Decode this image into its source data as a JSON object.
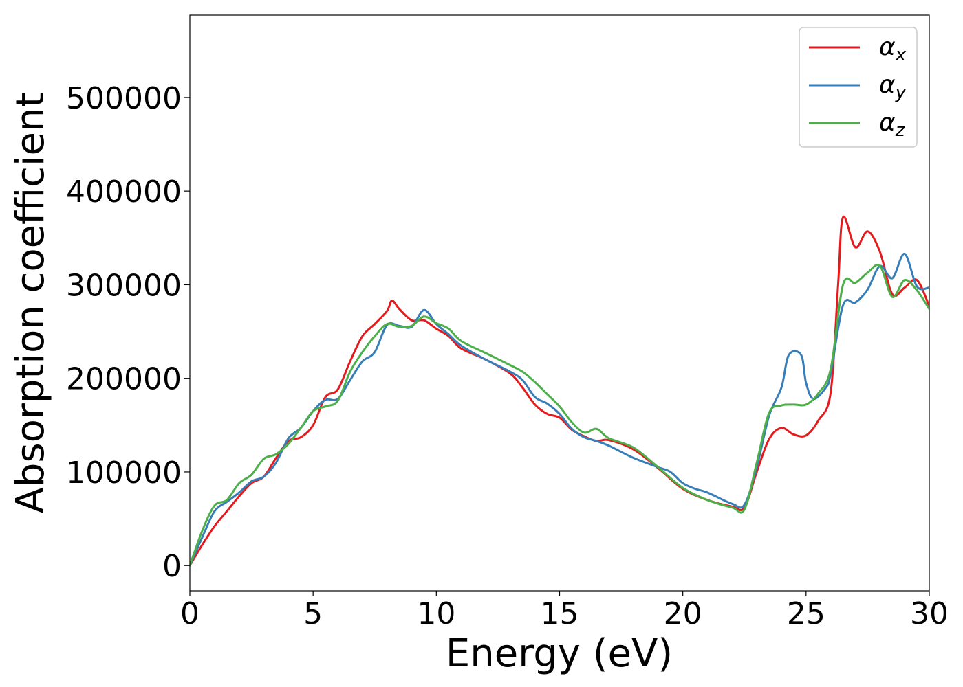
{
  "chart_data": {
    "type": "line",
    "title": "",
    "xlabel": "Energy (eV)",
    "ylabel": "Absorption coefficient",
    "xlim": [
      0,
      30
    ],
    "ylim": [
      -27000,
      588000
    ],
    "xticks": [
      0,
      5,
      10,
      15,
      20,
      25,
      30
    ],
    "yticks": [
      0,
      100000,
      200000,
      300000,
      400000,
      500000
    ],
    "grid": false,
    "legend_position": "top-right",
    "series": [
      {
        "name": "α",
        "subscript": "x",
        "color": "#e41a1c",
        "points": [
          [
            0,
            0
          ],
          [
            0.5,
            22000
          ],
          [
            1,
            42000
          ],
          [
            1.5,
            58000
          ],
          [
            2,
            74000
          ],
          [
            2.5,
            88000
          ],
          [
            3,
            95000
          ],
          [
            3.5,
            115000
          ],
          [
            4,
            133000
          ],
          [
            4.5,
            137000
          ],
          [
            5,
            150000
          ],
          [
            5.5,
            180000
          ],
          [
            6,
            188000
          ],
          [
            6.5,
            218000
          ],
          [
            7,
            245000
          ],
          [
            7.5,
            258000
          ],
          [
            8,
            272000
          ],
          [
            8.2,
            283000
          ],
          [
            8.5,
            274000
          ],
          [
            9,
            262000
          ],
          [
            9.5,
            262000
          ],
          [
            10,
            253000
          ],
          [
            10.5,
            245000
          ],
          [
            11,
            232000
          ],
          [
            12,
            220000
          ],
          [
            13,
            205000
          ],
          [
            13.5,
            190000
          ],
          [
            14,
            172000
          ],
          [
            14.5,
            162000
          ],
          [
            15,
            158000
          ],
          [
            15.5,
            145000
          ],
          [
            16,
            138000
          ],
          [
            16.5,
            133000
          ],
          [
            17,
            134000
          ],
          [
            18,
            124000
          ],
          [
            19,
            104000
          ],
          [
            20,
            82000
          ],
          [
            21,
            70000
          ],
          [
            22,
            63000
          ],
          [
            22.5,
            62000
          ],
          [
            23,
            100000
          ],
          [
            23.5,
            135000
          ],
          [
            24,
            147000
          ],
          [
            24.5,
            140000
          ],
          [
            25,
            139000
          ],
          [
            25.5,
            155000
          ],
          [
            26,
            185000
          ],
          [
            26.3,
            300000
          ],
          [
            26.5,
            372000
          ],
          [
            27,
            340000
          ],
          [
            27.5,
            357000
          ],
          [
            28,
            335000
          ],
          [
            28.5,
            290000
          ],
          [
            29,
            297000
          ],
          [
            29.5,
            305000
          ],
          [
            30,
            277000
          ]
        ]
      },
      {
        "name": "α",
        "subscript": "y",
        "color": "#377eb8",
        "points": [
          [
            0,
            0
          ],
          [
            0.5,
            30000
          ],
          [
            1,
            58000
          ],
          [
            1.5,
            68000
          ],
          [
            2,
            78000
          ],
          [
            2.5,
            90000
          ],
          [
            3,
            95000
          ],
          [
            3.5,
            110000
          ],
          [
            4,
            136000
          ],
          [
            4.5,
            147000
          ],
          [
            5,
            165000
          ],
          [
            5.5,
            177000
          ],
          [
            6,
            178000
          ],
          [
            6.5,
            198000
          ],
          [
            7,
            218000
          ],
          [
            7.5,
            228000
          ],
          [
            8,
            257000
          ],
          [
            8.5,
            256000
          ],
          [
            9,
            255000
          ],
          [
            9.5,
            273000
          ],
          [
            10,
            258000
          ],
          [
            10.5,
            247000
          ],
          [
            11,
            235000
          ],
          [
            12,
            220000
          ],
          [
            13,
            207000
          ],
          [
            13.5,
            198000
          ],
          [
            14,
            180000
          ],
          [
            14.5,
            173000
          ],
          [
            15,
            162000
          ],
          [
            15.5,
            146000
          ],
          [
            16,
            137000
          ],
          [
            16.5,
            133000
          ],
          [
            17,
            128000
          ],
          [
            18,
            115000
          ],
          [
            19,
            105000
          ],
          [
            19.5,
            100000
          ],
          [
            20,
            88000
          ],
          [
            20.5,
            82000
          ],
          [
            21,
            78000
          ],
          [
            22,
            66000
          ],
          [
            22.5,
            65000
          ],
          [
            23,
            105000
          ],
          [
            23.5,
            160000
          ],
          [
            24,
            190000
          ],
          [
            24.3,
            225000
          ],
          [
            24.8,
            225000
          ],
          [
            25,
            195000
          ],
          [
            25.3,
            178000
          ],
          [
            25.8,
            190000
          ],
          [
            26,
            205000
          ],
          [
            26.5,
            278000
          ],
          [
            27,
            281000
          ],
          [
            27.5,
            295000
          ],
          [
            28,
            320000
          ],
          [
            28.5,
            307000
          ],
          [
            29,
            333000
          ],
          [
            29.5,
            298000
          ],
          [
            30,
            297000
          ]
        ]
      },
      {
        "name": "α",
        "subscript": "z",
        "color": "#4daf4a",
        "points": [
          [
            0,
            0
          ],
          [
            0.5,
            37000
          ],
          [
            1,
            64000
          ],
          [
            1.5,
            70000
          ],
          [
            2,
            88000
          ],
          [
            2.5,
            97000
          ],
          [
            3,
            114000
          ],
          [
            3.5,
            119000
          ],
          [
            4,
            130000
          ],
          [
            4.5,
            147000
          ],
          [
            5,
            165000
          ],
          [
            5.5,
            170000
          ],
          [
            6,
            176000
          ],
          [
            6.5,
            207000
          ],
          [
            7,
            228000
          ],
          [
            7.5,
            245000
          ],
          [
            8,
            258000
          ],
          [
            8.5,
            255000
          ],
          [
            9,
            256000
          ],
          [
            9.5,
            266000
          ],
          [
            10,
            259000
          ],
          [
            10.5,
            253000
          ],
          [
            11,
            240000
          ],
          [
            12,
            227000
          ],
          [
            13,
            214000
          ],
          [
            13.5,
            207000
          ],
          [
            14,
            196000
          ],
          [
            14.5,
            183000
          ],
          [
            15,
            170000
          ],
          [
            15.5,
            153000
          ],
          [
            16,
            142000
          ],
          [
            16.5,
            146000
          ],
          [
            17,
            136000
          ],
          [
            18,
            126000
          ],
          [
            19,
            105000
          ],
          [
            20,
            83000
          ],
          [
            21,
            70000
          ],
          [
            22,
            62000
          ],
          [
            22.5,
            60000
          ],
          [
            23,
            110000
          ],
          [
            23.5,
            163000
          ],
          [
            24,
            171000
          ],
          [
            24.5,
            172000
          ],
          [
            25,
            172000
          ],
          [
            25.5,
            184000
          ],
          [
            26,
            210000
          ],
          [
            26.5,
            300000
          ],
          [
            27,
            302000
          ],
          [
            27.5,
            313000
          ],
          [
            28,
            320000
          ],
          [
            28.5,
            287000
          ],
          [
            29,
            305000
          ],
          [
            29.5,
            294000
          ],
          [
            30,
            274000
          ]
        ]
      }
    ]
  }
}
